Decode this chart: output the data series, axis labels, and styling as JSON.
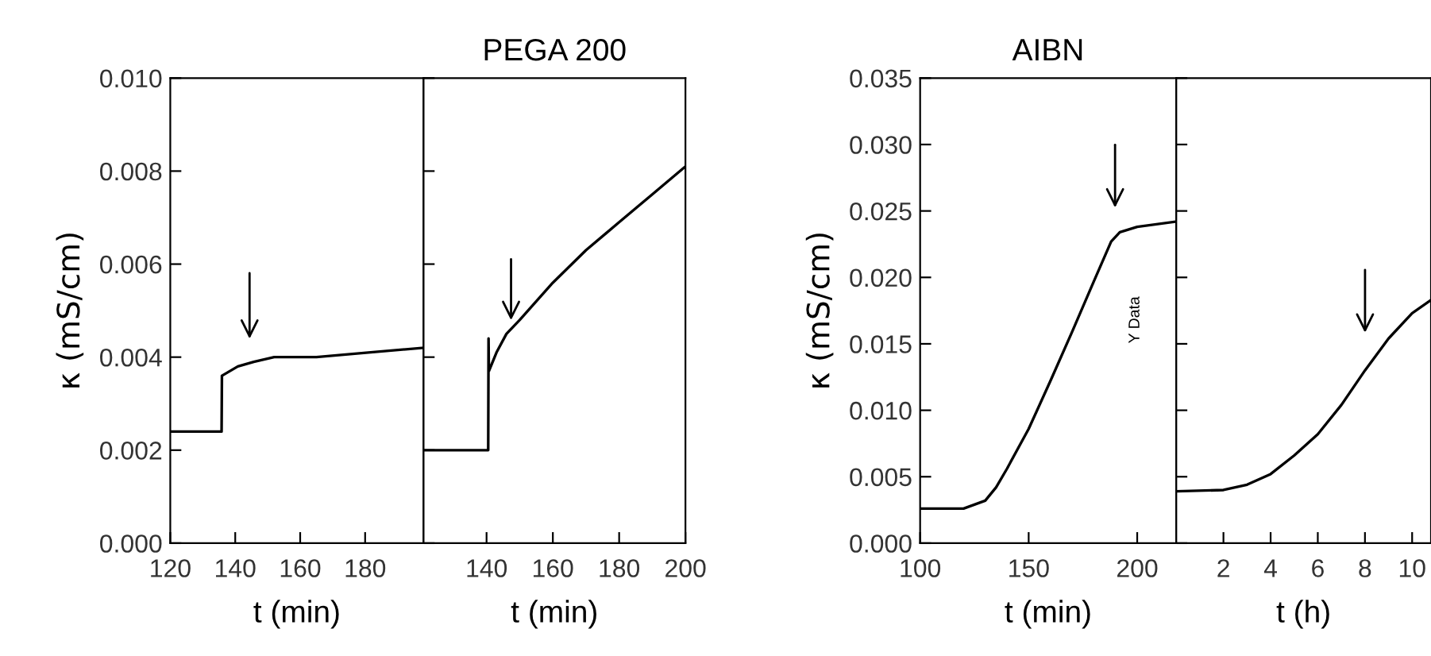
{
  "chart_data": [
    {
      "type": "line",
      "xlabel": "t (min)",
      "ylabel": "κ (mS/cm)",
      "xlim": [
        120,
        198
      ],
      "ylim": [
        0,
        0.01
      ],
      "xticks": [
        120,
        140,
        160,
        180
      ],
      "yticks": [
        {
          "value": 0,
          "label": "0.000"
        },
        {
          "value": 0.002,
          "label": "0.002"
        },
        {
          "value": 0.004,
          "label": "0.004"
        },
        {
          "value": 0.006,
          "label": "0.006"
        },
        {
          "value": 0.008,
          "label": "0.008"
        },
        {
          "value": 0.01,
          "label": "0.010"
        }
      ],
      "series": [
        {
          "color": "#000000",
          "x": [
            120,
            135.8,
            135.9,
            140.8,
            145.7,
            152,
            165,
            181,
            198
          ],
          "values": [
            0.0024,
            0.0024,
            0.0036,
            0.0038,
            0.0039,
            0.004,
            0.004,
            0.0041,
            0.0042
          ]
        }
      ],
      "line_style": "solid",
      "grid": false,
      "legend": false
    },
    {
      "type": "line",
      "title": "PEGA 200",
      "xlabel": "t (min)",
      "xlim": [
        121,
        200
      ],
      "ylim": [
        0,
        0.01
      ],
      "xticks": [
        140,
        160,
        180,
        200
      ],
      "yticks": [
        {
          "value": 0,
          "label": null
        },
        {
          "value": 0.002,
          "label": null
        },
        {
          "value": 0.004,
          "label": null
        },
        {
          "value": 0.006,
          "label": null
        },
        {
          "value": 0.008,
          "label": null
        },
        {
          "value": 0.01,
          "label": null
        }
      ],
      "tick_labels": "x",
      "series": [
        {
          "color": "#000000",
          "x": [
            121,
            140.5,
            140.6,
            140.7,
            143,
            146,
            150,
            160,
            170,
            180,
            190,
            200
          ],
          "values": [
            0.002,
            0.002,
            0.0044,
            0.0037,
            0.0041,
            0.0045,
            0.0048,
            0.0056,
            0.0063,
            0.0069,
            0.0075,
            0.0081
          ]
        }
      ],
      "line_style": "solid",
      "grid": false,
      "legend": false
    },
    {
      "type": "line",
      "title": "AIBN",
      "xlabel": "t (min)",
      "ylabel": "κ (mS/cm)",
      "xlim": [
        100,
        218
      ],
      "ylim": [
        0,
        0.035
      ],
      "xticks": [
        100,
        150,
        200
      ],
      "yticks": [
        {
          "value": 0,
          "label": "0.000"
        },
        {
          "value": 0.005,
          "label": "0.005"
        },
        {
          "value": 0.01,
          "label": "0.010"
        },
        {
          "value": 0.015,
          "label": "0.015"
        },
        {
          "value": 0.02,
          "label": "0.020"
        },
        {
          "value": 0.025,
          "label": "0.025"
        },
        {
          "value": 0.03,
          "label": "0.030"
        },
        {
          "value": 0.035,
          "label": "0.035"
        }
      ],
      "series": [
        {
          "color": "#000000",
          "x": [
            100,
            120,
            130,
            135,
            140,
            150,
            160,
            170,
            180,
            188,
            192,
            200,
            218
          ],
          "values": [
            0.0026,
            0.0026,
            0.0032,
            0.0042,
            0.0056,
            0.0086,
            0.0122,
            0.0159,
            0.0197,
            0.0227,
            0.0234,
            0.0238,
            0.0242
          ]
        }
      ],
      "annotations": [
        "Y Data"
      ],
      "line_style": "solid",
      "grid": false,
      "legend": false
    },
    {
      "type": "line",
      "xlabel": "t (h)",
      "xlim": [
        0,
        10.8
      ],
      "ylim": [
        0,
        0.035
      ],
      "xticks": [
        2,
        4,
        6,
        8,
        10
      ],
      "yticks": [
        {
          "value": 0,
          "label": null
        },
        {
          "value": 0.005,
          "label": null
        },
        {
          "value": 0.01,
          "label": null
        },
        {
          "value": 0.015,
          "label": null
        },
        {
          "value": 0.02,
          "label": null
        },
        {
          "value": 0.025,
          "label": null
        },
        {
          "value": 0.03,
          "label": null
        },
        {
          "value": 0.035,
          "label": null
        }
      ],
      "tick_labels": "x",
      "series": [
        {
          "color": "#000000",
          "x": [
            0,
            2,
            3,
            4,
            5,
            6,
            7,
            8,
            9,
            10,
            10.8
          ],
          "values": [
            0.0039,
            0.004,
            0.0044,
            0.0052,
            0.0066,
            0.0082,
            0.0104,
            0.013,
            0.0154,
            0.0173,
            0.0183
          ]
        }
      ],
      "line_style": "solid",
      "grid": false,
      "legend": false
    }
  ]
}
